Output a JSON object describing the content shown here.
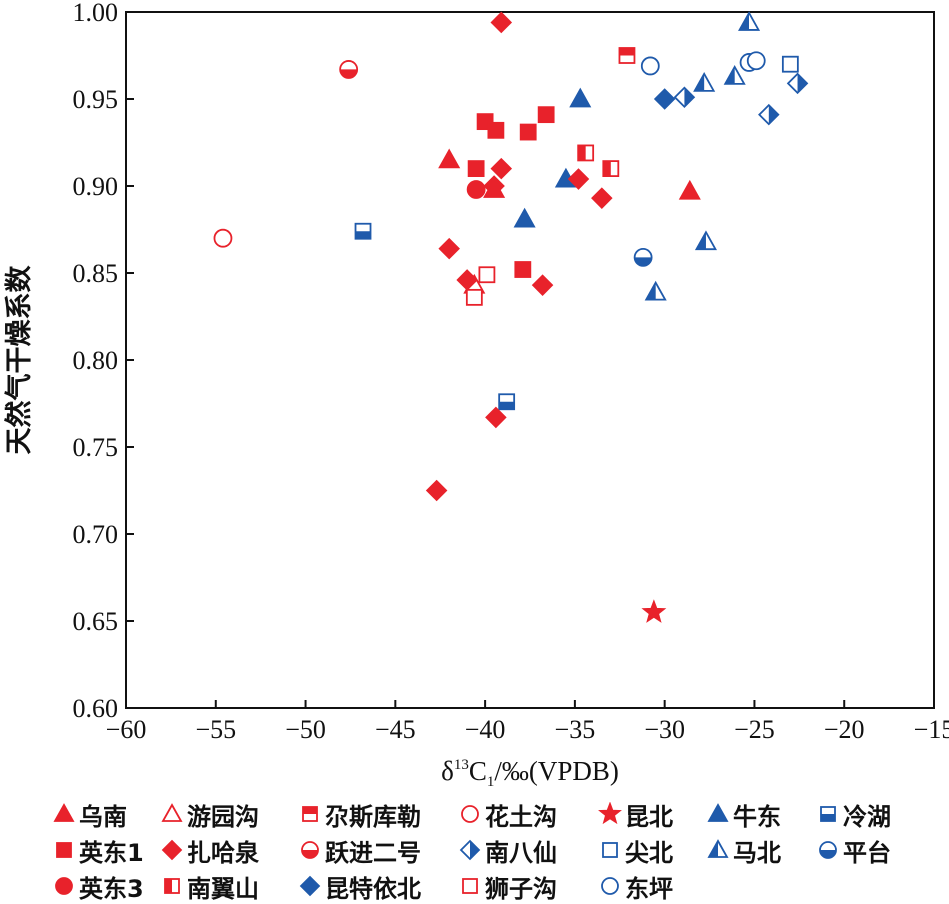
{
  "chart_data": {
    "type": "scatter",
    "xlabel": "δ13C1/‰(VPDB)",
    "xlabel_parts": {
      "main": "δ",
      "sup": "13",
      "base": "C",
      "sub": "1",
      "rest": "/‰(VPDB)"
    },
    "ylabel": "天然气干燥系数",
    "xlim": [
      -60,
      -15
    ],
    "ylim": [
      0.6,
      1.0
    ],
    "x_ticks": [
      "−60",
      "−55",
      "−50",
      "−45",
      "−40",
      "−35",
      "−30",
      "−25",
      "−20",
      "−15"
    ],
    "y_ticks": [
      "0.60",
      "0.65",
      "0.70",
      "0.75",
      "0.80",
      "0.85",
      "0.90",
      "0.95",
      "1.00"
    ],
    "grid": false,
    "legend_position": "bottom",
    "colors": {
      "red": "#e8222b",
      "blue": "#1f5aab"
    },
    "series": [
      {
        "name": "乌南",
        "marker": "triangle",
        "fill": "full",
        "color": "#e8222b",
        "points": [
          [
            -42.0,
            0.915
          ],
          [
            -39.5,
            0.898
          ],
          [
            -28.6,
            0.897
          ]
        ]
      },
      {
        "name": "游园沟",
        "marker": "triangle",
        "fill": "none",
        "color": "#e8222b",
        "points": [
          [
            -40.6,
            0.843
          ]
        ]
      },
      {
        "name": "尕斯库勒",
        "marker": "square",
        "fill": "top",
        "color": "#e8222b",
        "points": [
          [
            -32.1,
            0.975
          ]
        ]
      },
      {
        "name": "花土沟",
        "marker": "circle",
        "fill": "none",
        "color": "#e8222b",
        "points": [
          [
            -54.6,
            0.87
          ]
        ]
      },
      {
        "name": "昆北",
        "marker": "star",
        "fill": "full",
        "color": "#e8222b",
        "points": [
          [
            -30.6,
            0.655
          ]
        ]
      },
      {
        "name": "牛东",
        "marker": "triangle",
        "fill": "full",
        "color": "#1f5aab",
        "points": [
          [
            -34.7,
            0.95
          ],
          [
            -35.5,
            0.904
          ],
          [
            -37.8,
            0.881
          ]
        ]
      },
      {
        "name": "冷湖",
        "marker": "square",
        "fill": "bottom",
        "color": "#1f5aab",
        "points": [
          [
            -46.8,
            0.874
          ],
          [
            -38.8,
            0.776
          ]
        ]
      },
      {
        "name": "英东1",
        "marker": "square",
        "fill": "full",
        "color": "#e8222b",
        "points": [
          [
            -40.0,
            0.937
          ],
          [
            -39.4,
            0.932
          ],
          [
            -37.6,
            0.931
          ],
          [
            -36.6,
            0.941
          ],
          [
            -40.5,
            0.91
          ],
          [
            -37.9,
            0.852
          ]
        ]
      },
      {
        "name": "扎哈泉",
        "marker": "diamond",
        "fill": "full",
        "color": "#e8222b",
        "points": [
          [
            -39.1,
            0.994
          ],
          [
            -39.1,
            0.91
          ],
          [
            -39.5,
            0.9
          ],
          [
            -34.8,
            0.904
          ],
          [
            -33.5,
            0.893
          ],
          [
            -42.0,
            0.864
          ],
          [
            -41.0,
            0.846
          ],
          [
            -36.8,
            0.843
          ],
          [
            -39.4,
            0.767
          ],
          [
            -42.7,
            0.725
          ]
        ]
      },
      {
        "name": "跃进二号",
        "marker": "circle",
        "fill": "bottom",
        "color": "#e8222b",
        "points": [
          [
            -47.6,
            0.967
          ]
        ]
      },
      {
        "name": "南八仙",
        "marker": "diamond",
        "fill": "right",
        "color": "#1f5aab",
        "points": [
          [
            -28.9,
            0.951
          ],
          [
            -22.6,
            0.959
          ],
          [
            -24.2,
            0.941
          ]
        ]
      },
      {
        "name": "尖北",
        "marker": "square",
        "fill": "none",
        "color": "#1f5aab",
        "points": [
          [
            -23.0,
            0.97
          ]
        ]
      },
      {
        "name": "马北",
        "marker": "triangle",
        "fill": "left",
        "color": "#1f5aab",
        "points": [
          [
            -25.3,
            0.994
          ],
          [
            -27.8,
            0.959
          ],
          [
            -26.1,
            0.963
          ],
          [
            -27.7,
            0.868
          ],
          [
            -30.5,
            0.839
          ]
        ]
      },
      {
        "name": "平台",
        "marker": "circle",
        "fill": "bottom",
        "color": "#1f5aab",
        "points": [
          [
            -31.2,
            0.859
          ]
        ]
      },
      {
        "name": "英东3",
        "marker": "circle",
        "fill": "full",
        "color": "#e8222b",
        "points": [
          [
            -40.5,
            0.898
          ]
        ]
      },
      {
        "name": "南翼山",
        "marker": "square",
        "fill": "left",
        "color": "#e8222b",
        "points": [
          [
            -34.4,
            0.919
          ],
          [
            -33.0,
            0.91
          ]
        ]
      },
      {
        "name": "昆特依北",
        "marker": "diamond",
        "fill": "full",
        "color": "#1f5aab",
        "points": [
          [
            -30.0,
            0.95
          ]
        ]
      },
      {
        "name": "狮子沟",
        "marker": "square",
        "fill": "none",
        "color": "#e8222b",
        "points": [
          [
            -39.9,
            0.849
          ],
          [
            -40.6,
            0.836
          ]
        ]
      },
      {
        "name": "东坪",
        "marker": "circle",
        "fill": "none",
        "color": "#1f5aab",
        "points": [
          [
            -30.8,
            0.969
          ],
          [
            -25.3,
            0.971
          ],
          [
            -24.9,
            0.972
          ]
        ]
      }
    ],
    "legend_rows": [
      [
        "乌南",
        "游园沟",
        "尕斯库勒",
        "花土沟",
        "昆北",
        "牛东",
        "冷湖"
      ],
      [
        "英东1",
        "扎哈泉",
        "跃进二号",
        "南八仙",
        "尖北",
        "马北",
        "平台"
      ],
      [
        "英东3",
        "南翼山",
        "昆特依北",
        "狮子沟",
        "东坪"
      ]
    ]
  }
}
